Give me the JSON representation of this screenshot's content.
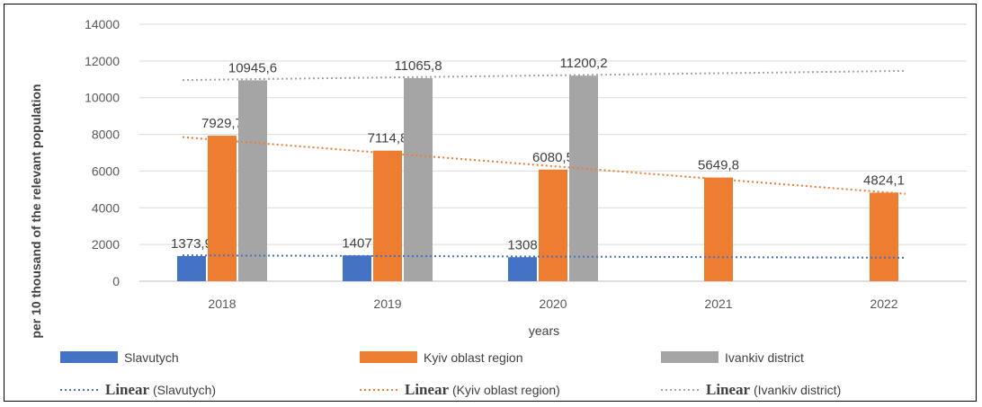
{
  "chart_data": {
    "type": "bar",
    "title": "",
    "xlabel": "years",
    "ylabel": "per 10 thousand of the relevant population",
    "ylim": [
      0,
      14000
    ],
    "yticks": [
      0,
      2000,
      4000,
      6000,
      8000,
      10000,
      12000,
      14000
    ],
    "grid": true,
    "legend_position": "bottom",
    "categories": [
      "2018",
      "2019",
      "2020",
      "2021",
      "2022"
    ],
    "series": [
      {
        "name": "Slavutych",
        "color": "#4472C4",
        "values": [
          1373.9,
          1407,
          1308,
          null,
          null
        ],
        "labels": [
          "1373,9",
          "1407",
          "1308",
          "",
          ""
        ]
      },
      {
        "name": "Kyiv oblast region",
        "color": "#ED7D31",
        "values": [
          7929.7,
          7114.8,
          6080.5,
          5649.8,
          4824.1
        ],
        "labels": [
          "7929,7",
          "7114,8",
          "6080,5",
          "5649,8",
          "4824,1"
        ]
      },
      {
        "name": "Ivankiv district",
        "color": "#A5A5A5",
        "values": [
          10945.6,
          11065.8,
          11200.2,
          null,
          null
        ],
        "labels": [
          "10945,6",
          "11065,8",
          "11200,2",
          "",
          ""
        ]
      }
    ],
    "trendlines": [
      {
        "label_bold": "Linear",
        "label_rest": " (Slavutych)",
        "series": "Slavutych",
        "color": "#4472C4",
        "start": 1408,
        "end": 1280
      },
      {
        "label_bold": "Linear",
        "label_rest": " (Kyiv oblast region)",
        "series": "Kyiv oblast region",
        "color": "#ED7D31",
        "start": 7850,
        "end": 4760
      },
      {
        "label_bold": "Linear",
        "label_rest": " (Ivankiv district)",
        "series": "Ivankiv district",
        "color": "#A5A5A5",
        "start": 10960,
        "end": 11460
      }
    ]
  }
}
